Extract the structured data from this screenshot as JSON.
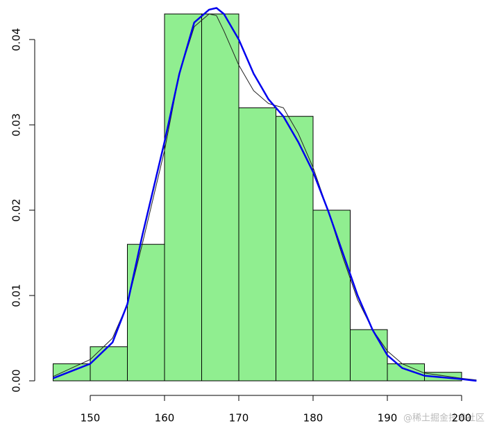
{
  "chart_data": {
    "type": "histogram",
    "bins": [
      145,
      150,
      155,
      160,
      165,
      170,
      175,
      180,
      185,
      190,
      195,
      200
    ],
    "values": [
      0.002,
      0.004,
      0.016,
      0.043,
      0.043,
      0.032,
      0.031,
      0.02,
      0.006,
      0.002,
      0.001
    ],
    "color": "#90ee90",
    "edge_color": "#000000",
    "xlim": [
      142,
      202
    ],
    "ylim": [
      0,
      0.044
    ],
    "xticks": [
      150,
      160,
      170,
      180,
      190,
      200
    ],
    "yticks": [
      {
        "value": 0,
        "label": "0.00"
      },
      0.01,
      0.02,
      0.03,
      0.04
    ],
    "series": [
      {
        "color": "#222222",
        "line_width": 1,
        "x": [
          145,
          150,
          153,
          155,
          157,
          160,
          162,
          164,
          166,
          167,
          168,
          170,
          172,
          174,
          176,
          178,
          180,
          182,
          184,
          186,
          188,
          190,
          192,
          195,
          200,
          202
        ],
        "values": [
          0.0005,
          0.0025,
          0.005,
          0.009,
          0.016,
          0.027,
          0.036,
          0.0415,
          0.043,
          0.0428,
          0.041,
          0.037,
          0.034,
          0.0325,
          0.032,
          0.029,
          0.025,
          0.02,
          0.0145,
          0.0095,
          0.006,
          0.0035,
          0.002,
          0.0009,
          0.0003,
          0.0001
        ]
      },
      {
        "color": "#0000ee",
        "line_width": 2.5,
        "x": [
          145,
          150,
          153,
          155,
          157,
          160,
          162,
          164,
          166,
          167,
          168,
          170,
          172,
          174,
          176,
          178,
          180,
          182,
          184,
          186,
          188,
          190,
          192,
          195,
          200,
          202
        ],
        "values": [
          0.0003,
          0.002,
          0.0045,
          0.009,
          0.017,
          0.028,
          0.036,
          0.042,
          0.0435,
          0.0437,
          0.043,
          0.04,
          0.036,
          0.033,
          0.031,
          0.028,
          0.0245,
          0.02,
          0.015,
          0.01,
          0.006,
          0.003,
          0.0015,
          0.0006,
          0.0002,
          0
        ]
      }
    ],
    "watermark": "@稀土掘金技术社区"
  }
}
